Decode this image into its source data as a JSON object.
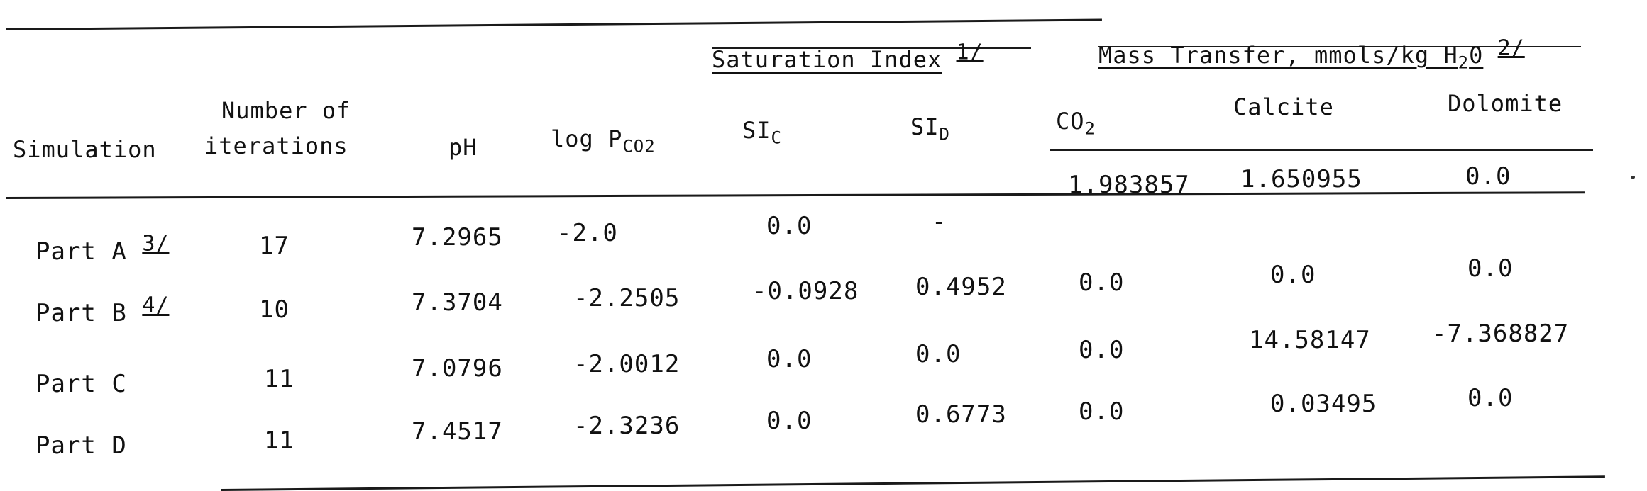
{
  "headers": {
    "group_saturation": "Saturation Index",
    "group_saturation_note": "1/",
    "group_mass_transfer_pre": "Mass Transfer, mmols/kg H",
    "group_mass_transfer_sub": "2",
    "group_mass_transfer_post": "0",
    "group_mass_transfer_note": "2/",
    "simulation": "Simulation",
    "iterations_line1": "Number of",
    "iterations_line2": "iterations",
    "ph": "pH",
    "logp_main": "log P",
    "logp_sub": "CO2",
    "si_c_main": "SI",
    "si_c_sub": "C",
    "si_d_main": "SI",
    "si_d_sub": "D",
    "co2_main": "CO",
    "co2_sub": "2",
    "calcite": "Calcite",
    "dolomite": "Dolomite"
  },
  "rows": [
    {
      "simulation": "Part A",
      "note": "3/",
      "iterations": "17",
      "ph": "7.2965",
      "log_pco2": "-2.0",
      "si_c": "0.0",
      "si_d": "-",
      "co2": "1.983857",
      "calcite": "1.650955",
      "dolomite": "0.0"
    },
    {
      "simulation": "Part B",
      "note": "4/",
      "iterations": "10",
      "ph": "7.3704",
      "log_pco2": "-2.2505",
      "si_c": "-0.0928",
      "si_d": "0.4952",
      "co2": "0.0",
      "calcite": "0.0",
      "dolomite": "0.0"
    },
    {
      "simulation": "Part C",
      "note": "",
      "iterations": "11",
      "ph": "7.0796",
      "log_pco2": "-2.0012",
      "si_c": "0.0",
      "si_d": "0.0",
      "co2": "0.0",
      "calcite": "14.58147",
      "dolomite": "-7.368827"
    },
    {
      "simulation": "Part D",
      "note": "",
      "iterations": "11",
      "ph": "7.4517",
      "log_pco2": "-2.3236",
      "si_c": "0.0",
      "si_d": "0.6773",
      "co2": "0.0",
      "calcite": "0.03495",
      "dolomite": "0.0"
    }
  ]
}
